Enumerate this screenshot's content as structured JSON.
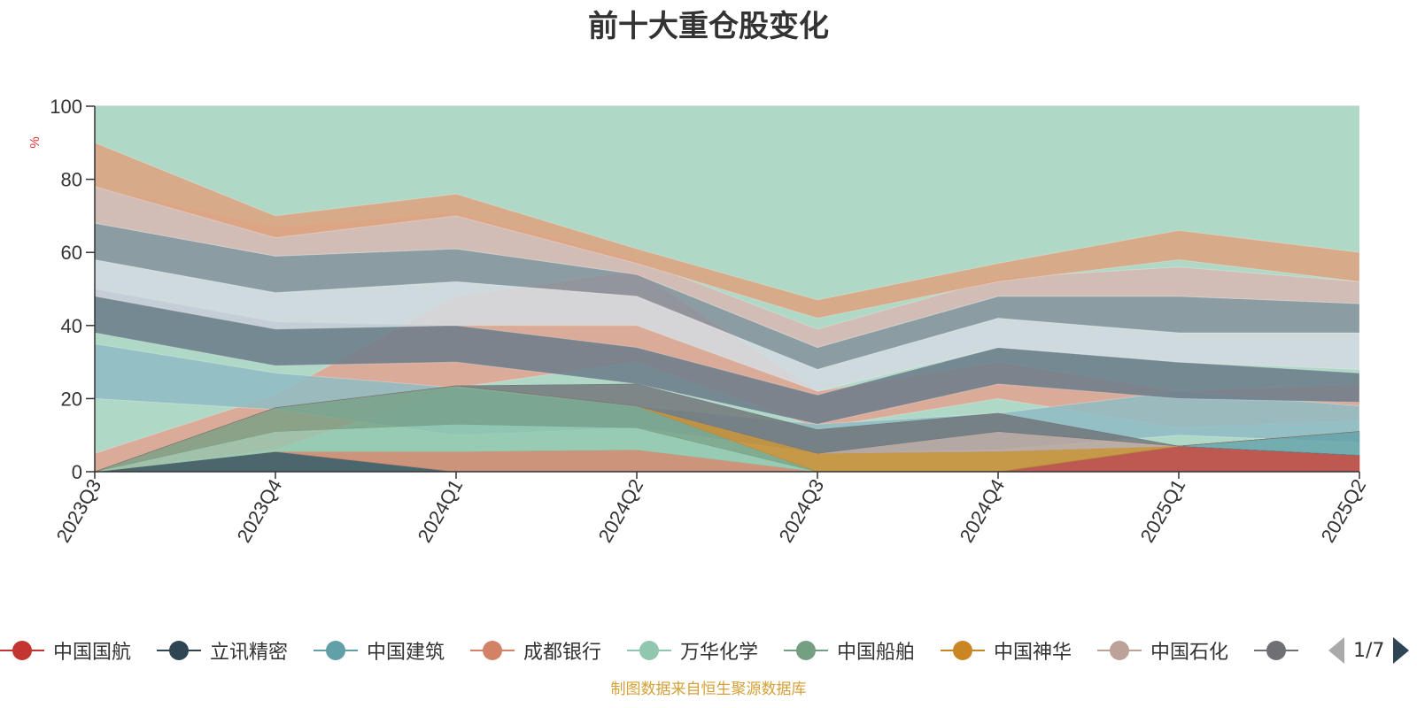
{
  "chart_data": {
    "type": "area",
    "title": "前十大重仓股变化",
    "ylabel": "%",
    "ylim": [
      0,
      100
    ],
    "yticks": [
      0,
      20,
      40,
      60,
      80,
      100
    ],
    "grid": true,
    "legend_position": "bottom",
    "x": [
      "2023Q3",
      "2023Q4",
      "2024Q1",
      "2024Q2",
      "2024Q3",
      "2024Q4",
      "2025Q1",
      "2025Q2"
    ],
    "series": [
      {
        "name": "中国国航",
        "color": "#c23531",
        "values": [
          0,
          0,
          0,
          0,
          0,
          0,
          7,
          4.5
        ]
      },
      {
        "name": "立讯精密",
        "color": "#2f4554",
        "values": [
          0,
          5.5,
          0,
          0,
          0,
          0,
          0,
          0
        ]
      },
      {
        "name": "中国建筑",
        "color": "#61a0a8",
        "values": [
          0,
          0,
          0,
          0,
          0,
          0,
          0,
          6.5
        ]
      },
      {
        "name": "成都银行",
        "color": "#d48265",
        "values": [
          0,
          0,
          5.5,
          6,
          0,
          0,
          0,
          0
        ]
      },
      {
        "name": "万华化学",
        "color": "#91c7ae",
        "values": [
          0,
          5.5,
          7.5,
          6,
          0,
          0,
          0,
          0
        ]
      },
      {
        "name": "中国船舶",
        "color": "#749f83",
        "values": [
          0,
          6.5,
          10.5,
          6,
          0,
          0,
          0,
          0
        ]
      },
      {
        "name": "中国神华",
        "color": "#ca8622",
        "values": [
          0,
          0,
          0,
          0,
          5,
          5.5,
          0,
          0
        ]
      },
      {
        "name": "中国石化",
        "color": "#bda29a",
        "values": [
          0,
          0,
          0,
          0,
          0,
          5.5,
          0,
          0
        ]
      },
      {
        "name": "",
        "color": "#6e7074",
        "values": [
          0,
          0,
          0,
          6,
          6.5,
          5,
          0,
          0
        ]
      }
    ]
  },
  "legend": {
    "page_text": "1/7"
  },
  "source_note": "制图数据来自恒生聚源数据库"
}
